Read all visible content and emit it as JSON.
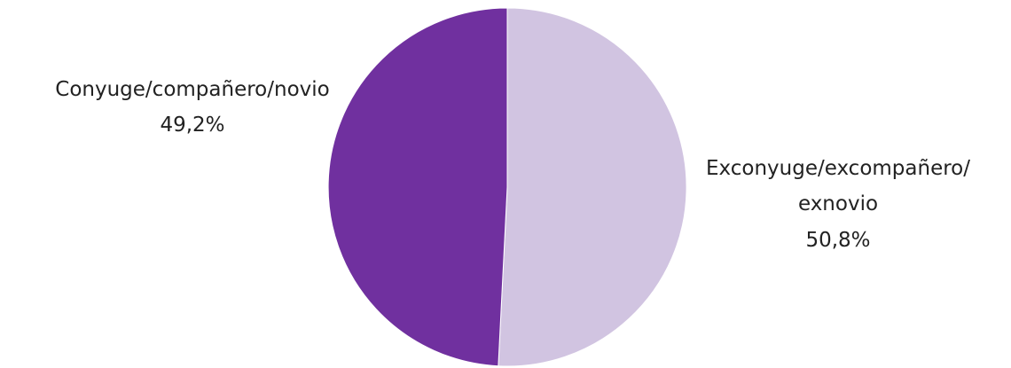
{
  "chart_data": {
    "type": "pie",
    "start_angle": "top",
    "direction": "clockwise",
    "slices": [
      {
        "label_lines": [
          "Exconyuge/excompañero/",
          "exnovio"
        ],
        "value_label": "50,8%",
        "value": 50.8,
        "color": "#d1c4e1"
      },
      {
        "label_lines": [
          "Conyuge/compañero/novio"
        ],
        "value_label": "49,2%",
        "value": 49.2,
        "color": "#70309f"
      }
    ]
  }
}
